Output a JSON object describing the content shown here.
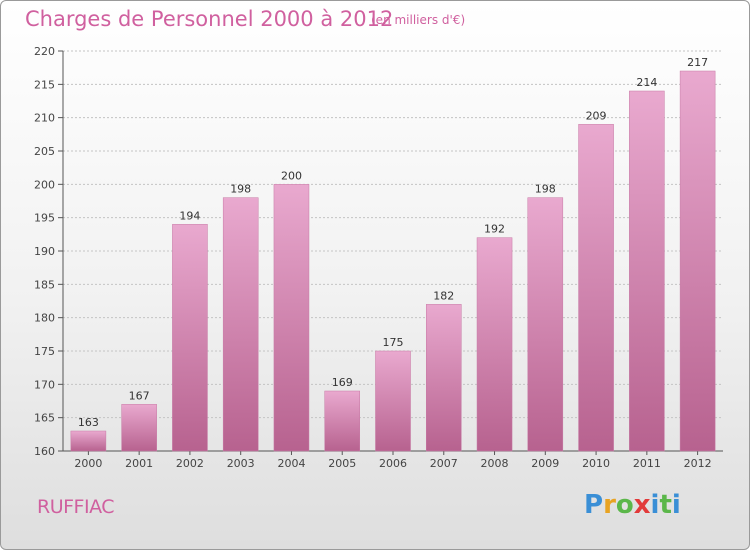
{
  "title": "Charges de Personnel 2000 à 2012",
  "unit": "(en milliers d'€)",
  "commune": "RUFFIAC",
  "logo": {
    "letters": [
      "P",
      "r",
      "o",
      "x",
      "i",
      "t",
      "i"
    ],
    "colors": [
      "#3a8fd6",
      "#e8a322",
      "#5bb74a",
      "#e23a3a",
      "#3a8fd6",
      "#5bb74a",
      "#3a8fd6"
    ]
  },
  "colors": {
    "bar": "#d783b3",
    "bar_light": "#e9a9cf",
    "bar_dark": "#b7628f",
    "accent": "#d0609f"
  },
  "chart_data": {
    "type": "bar",
    "categories": [
      "2000",
      "2001",
      "2002",
      "2003",
      "2004",
      "2005",
      "2006",
      "2007",
      "2008",
      "2009",
      "2010",
      "2011",
      "2012"
    ],
    "values": [
      163,
      167,
      194,
      198,
      200,
      169,
      175,
      182,
      192,
      198,
      209,
      214,
      217
    ],
    "yticks": [
      160,
      165,
      170,
      175,
      180,
      185,
      190,
      195,
      200,
      205,
      210,
      215,
      220
    ],
    "ylim": [
      160,
      220
    ],
    "grid": true,
    "data_labels": true
  }
}
